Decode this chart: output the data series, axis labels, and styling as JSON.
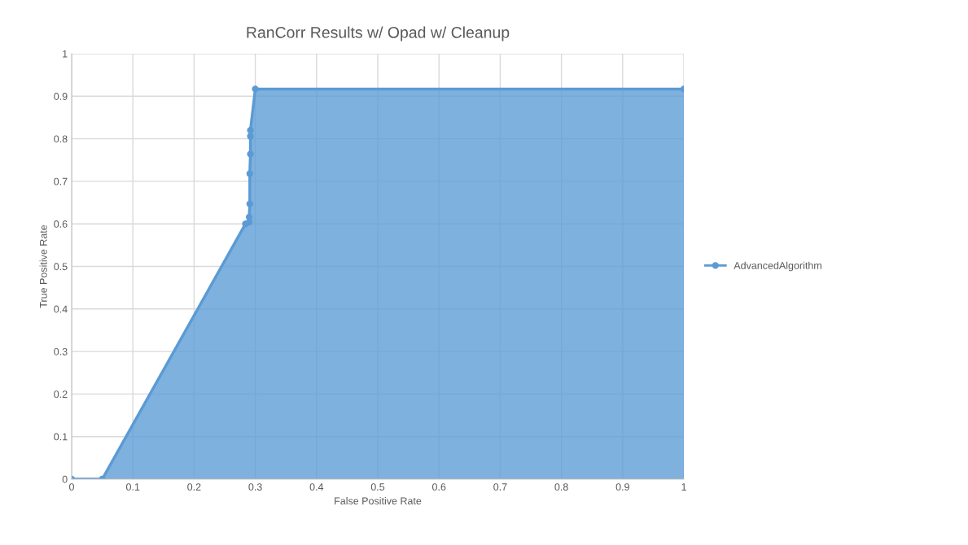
{
  "chart_data": {
    "type": "area",
    "title": "RanCorr Results w/ Opad w/ Cleanup",
    "xlabel": "False Positive Rate",
    "ylabel": "True Positive Rate",
    "x": [
      0,
      0.05,
      0.284,
      0.29,
      0.29,
      0.291,
      0.291,
      0.292,
      0.292,
      0.292,
      0.3,
      1
    ],
    "series": [
      {
        "name": "AdvancedAlgorithm",
        "color": "#5b9bd5",
        "values": [
          0,
          0,
          0.6,
          0.604,
          0.616,
          0.647,
          0.718,
          0.764,
          0.806,
          0.82,
          0.917,
          0.917
        ]
      }
    ],
    "xlim": [
      0,
      1
    ],
    "ylim": [
      0,
      1
    ],
    "xticks": [
      0,
      0.1,
      0.2,
      0.3,
      0.4,
      0.5,
      0.6,
      0.7,
      0.8,
      0.9,
      1
    ],
    "yticks": [
      0,
      0.1,
      0.2,
      0.3,
      0.4,
      0.5,
      0.6,
      0.7,
      0.8,
      0.9,
      1
    ],
    "grid": true,
    "legend": "right",
    "marker": "circle",
    "line_style": "solid"
  }
}
